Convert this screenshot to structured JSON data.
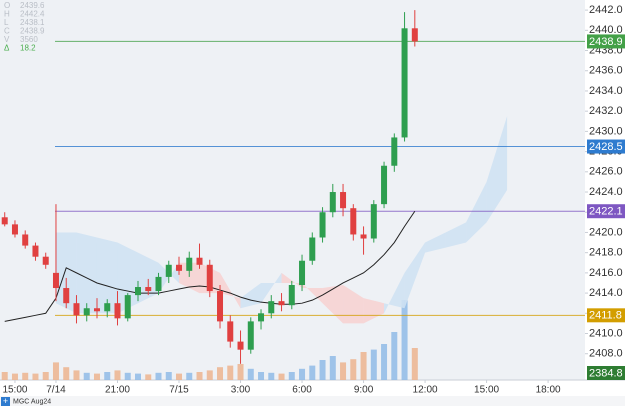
{
  "chart_data": {
    "type": "candlestick",
    "symbol": "MGC Aug24",
    "info": [
      {
        "label": "O",
        "value": "2439.6"
      },
      {
        "label": "H",
        "value": "2442.4"
      },
      {
        "label": "L",
        "value": "2438.1"
      },
      {
        "label": "C",
        "value": "2438.9"
      },
      {
        "label": "V",
        "value": "3560"
      },
      {
        "label": "Δ",
        "value": "18.2"
      }
    ],
    "xlim": [
      -0.73,
      27.8
    ],
    "xticks": [
      {
        "value": 0,
        "label": "15:00"
      },
      {
        "value": 2,
        "label": "7/14"
      },
      {
        "value": 5,
        "label": "21:00"
      },
      {
        "value": 8,
        "label": "7/15"
      },
      {
        "value": 11,
        "label": "3:00"
      },
      {
        "value": 14,
        "label": "6:00"
      },
      {
        "value": 17,
        "label": "9:00"
      },
      {
        "value": 20,
        "label": "12:00"
      },
      {
        "value": 23,
        "label": "15:00"
      },
      {
        "value": 26,
        "label": "18:00"
      }
    ],
    "ylim": [
      2405.4,
      2443.0
    ],
    "yticks": [
      {
        "value": 2408,
        "label": "2408.0"
      },
      {
        "value": 2410,
        "label": "2410.0"
      },
      {
        "value": 2412,
        "label": "2412.0"
      },
      {
        "value": 2414,
        "label": "2414.0"
      },
      {
        "value": 2416,
        "label": "2416.0"
      },
      {
        "value": 2418,
        "label": "2418.0"
      },
      {
        "value": 2420,
        "label": "2420.0"
      },
      {
        "value": 2422,
        "label": "2422.0"
      },
      {
        "value": 2424,
        "label": "2424.0"
      },
      {
        "value": 2426,
        "label": "2426.0"
      },
      {
        "value": 2428,
        "label": "2428.0"
      },
      {
        "value": 2430,
        "label": "2430.0"
      },
      {
        "value": 2432,
        "label": "2432.0"
      },
      {
        "value": 2434,
        "label": "2434.0"
      },
      {
        "value": 2436,
        "label": "2436.0"
      },
      {
        "value": 2438,
        "label": "2438.0"
      },
      {
        "value": 2440,
        "label": "2440.0"
      },
      {
        "value": 2442,
        "label": "2442.0"
      }
    ],
    "grid": false,
    "up_color": "#2e9e4f",
    "down_color": "#e04040",
    "x": [
      -0.5,
      0,
      0.5,
      1,
      1.5,
      2,
      2.5,
      3,
      3.5,
      4,
      4.5,
      5,
      5.5,
      6,
      6.5,
      7,
      7.5,
      8,
      8.5,
      9,
      9.5,
      10,
      10.5,
      11,
      11.5,
      12,
      12.5,
      13,
      13.5,
      14,
      14.5,
      15,
      15.5,
      16,
      16.5,
      17,
      17.5,
      18,
      18.5,
      19,
      19.5
    ],
    "candles": [
      [
        2421.5,
        2422,
        2420.6,
        2420.8
      ],
      [
        2420.8,
        2421.2,
        2419.5,
        2419.8
      ],
      [
        2419.8,
        2420.2,
        2418.4,
        2418.7
      ],
      [
        2418.7,
        2419,
        2417.2,
        2417.6
      ],
      [
        2417.6,
        2418,
        2416.4,
        2416.8
      ],
      [
        2416,
        2422.8,
        2413.2,
        2414.5
      ],
      [
        2414.5,
        2415.5,
        2412.5,
        2413
      ],
      [
        2413,
        2413.8,
        2411,
        2411.8
      ],
      [
        2411.8,
        2413,
        2411.2,
        2412.5
      ],
      [
        2412.5,
        2413.5,
        2411.5,
        2412.2
      ],
      [
        2412.2,
        2413.4,
        2411.6,
        2413
      ],
      [
        2413,
        2414.2,
        2410.8,
        2411.5
      ],
      [
        2411.5,
        2414,
        2411.2,
        2413.8
      ],
      [
        2413.8,
        2415.2,
        2413.2,
        2414.6
      ],
      [
        2414.6,
        2415.4,
        2413.8,
        2414.2
      ],
      [
        2414.2,
        2416,
        2413.8,
        2415.6
      ],
      [
        2415.6,
        2417.2,
        2415,
        2416.8
      ],
      [
        2416.8,
        2417.6,
        2415.8,
        2416.2
      ],
      [
        2416.2,
        2418.1,
        2415.6,
        2417.5
      ],
      [
        2417.5,
        2418.9,
        2416.4,
        2416.8
      ],
      [
        2416.8,
        2417.3,
        2413.6,
        2414.2
      ],
      [
        2414.2,
        2414.8,
        2410.5,
        2411.2
      ],
      [
        2411.2,
        2411.8,
        2408.6,
        2409.2
      ],
      [
        2409.2,
        2410.3,
        2407,
        2408.4
      ],
      [
        2408.4,
        2411.6,
        2408,
        2411.2
      ],
      [
        2411.2,
        2412.4,
        2410.4,
        2412
      ],
      [
        2412,
        2413.8,
        2411.5,
        2413.2
      ],
      [
        2413.2,
        2414,
        2412.2,
        2412.8
      ],
      [
        2412.8,
        2415.2,
        2412.4,
        2414.8
      ],
      [
        2414.8,
        2417.8,
        2414.2,
        2417.2
      ],
      [
        2417.2,
        2420,
        2416.8,
        2419.5
      ],
      [
        2419.5,
        2422.5,
        2419,
        2422
      ],
      [
        2422,
        2424.8,
        2421.5,
        2424
      ],
      [
        2424,
        2424.8,
        2421.6,
        2422.4
      ],
      [
        2422.4,
        2422.8,
        2419.2,
        2419.8
      ],
      [
        2419.8,
        2420.6,
        2417.8,
        2419.4
      ],
      [
        2419.4,
        2423.2,
        2419,
        2422.8
      ],
      [
        2422.8,
        2427,
        2422.4,
        2426.6
      ],
      [
        2426.6,
        2429.8,
        2426,
        2429.4
      ],
      [
        2429.4,
        2441.8,
        2429,
        2440.2
      ],
      [
        2440.2,
        2442,
        2438.4,
        2438.9
      ]
    ],
    "ma": {
      "color": "#222222",
      "values": [
        2411.2,
        2411.4,
        2411.6,
        2411.8,
        2412,
        2413.5,
        2416.5,
        2416,
        2415.5,
        2415,
        2414.7,
        2414.4,
        2414.2,
        2414,
        2414,
        2414,
        2414.2,
        2414.4,
        2414.6,
        2414.7,
        2414.6,
        2414.3,
        2414,
        2413.6,
        2413.3,
        2413.1,
        2413,
        2412.9,
        2412.9,
        2413,
        2413.3,
        2413.8,
        2414.4,
        2415,
        2415.5,
        2416,
        2416.8,
        2417.8,
        2419,
        2420.6,
        2422.1
      ]
    },
    "volume": {
      "vlim": [
        0,
        100
      ],
      "up_color": "#8fbbe6",
      "down_color": "#ecb48e",
      "values": [
        10,
        8,
        9,
        8,
        10,
        22,
        16,
        12,
        9,
        8,
        10,
        12,
        9,
        8,
        7,
        9,
        10,
        8,
        9,
        10,
        12,
        16,
        18,
        20,
        14,
        10,
        9,
        8,
        10,
        14,
        18,
        25,
        30,
        22,
        26,
        35,
        38,
        45,
        60,
        100,
        40
      ]
    },
    "cloud": {
      "up_color": "#cfe2f3",
      "down_color": "#f6d3d3",
      "x": [
        2,
        3,
        4,
        5,
        6,
        7,
        8,
        9,
        10,
        11,
        12,
        13,
        14,
        15,
        16,
        17,
        18,
        19,
        20,
        21,
        22,
        23,
        24
      ],
      "span_a": [
        2420,
        2420,
        2419.5,
        2419,
        2418,
        2417,
        2415,
        2414,
        2414,
        2413.5,
        2415,
        2415,
        2415,
        2413,
        2411,
        2411,
        2412,
        2416,
        2419,
        2420,
        2421,
        2425,
        2431.5
      ],
      "span_b": [
        2413,
        2412,
        2412,
        2412,
        2413,
        2414,
        2417,
        2417,
        2416,
        2412.5,
        2413,
        2416,
        2414.5,
        2414.5,
        2414.8,
        2413.5,
        2413,
        2412.5,
        2418,
        2418.5,
        2419,
        2421,
        2424.2
      ]
    },
    "levels": [
      {
        "value": 2438.9,
        "label": "2438.9",
        "color": "#43a047"
      },
      {
        "value": 2428.5,
        "label": "2428.5",
        "color": "#2e7bcf"
      },
      {
        "value": 2422.1,
        "label": "2422.1",
        "color": "#7e57c2"
      },
      {
        "value": 2411.8,
        "label": "2411.8",
        "color": "#d39e00"
      }
    ],
    "pinned_label": {
      "label": "2384.8",
      "color": "#2e7d32"
    }
  }
}
